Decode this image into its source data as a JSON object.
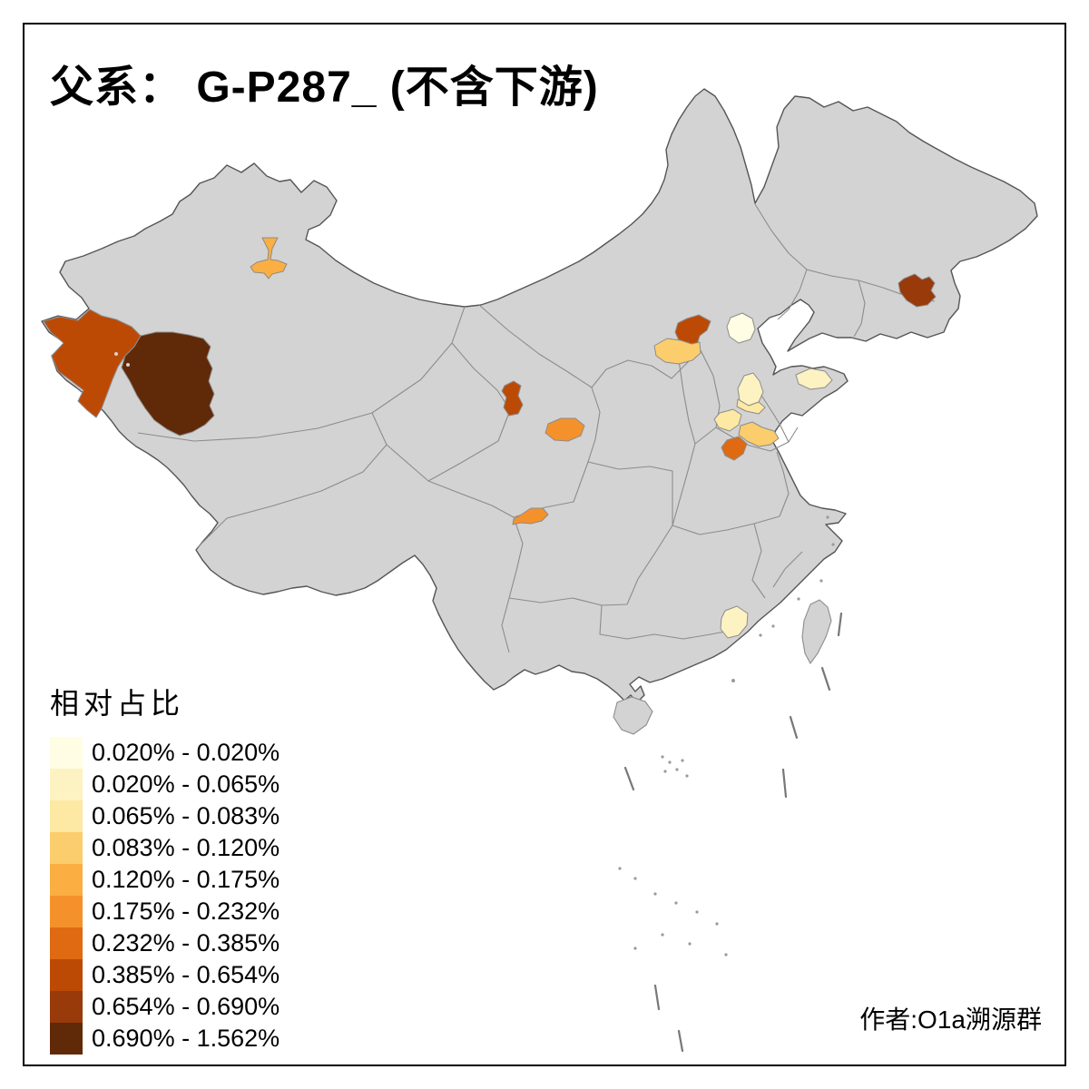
{
  "title": "父系： G-P287_ (不含下游)",
  "attribution": "作者:O1a溯源群",
  "legend": {
    "title": "相对占比",
    "classes": [
      {
        "label": "0.020% - 0.020%",
        "color": "#FFFDE3"
      },
      {
        "label": "0.020% - 0.065%",
        "color": "#FDF2C1"
      },
      {
        "label": "0.065% - 0.083%",
        "color": "#FDE8A4"
      },
      {
        "label": "0.083% - 0.120%",
        "color": "#FBCD6C"
      },
      {
        "label": "0.120% - 0.175%",
        "color": "#FBAE42"
      },
      {
        "label": "0.175% - 0.232%",
        "color": "#F5912A"
      },
      {
        "label": "0.232% - 0.385%",
        "color": "#DF6A12"
      },
      {
        "label": "0.385% - 0.654%",
        "color": "#BC4A05"
      },
      {
        "label": "0.654% - 0.690%",
        "color": "#983A09"
      },
      {
        "label": "0.690% - 1.562%",
        "color": "#602908"
      }
    ]
  },
  "map": {
    "base_fill": "#D3D3D3",
    "province_border_color": "#8C8C8C",
    "outline_color": "#555555",
    "dash_line_color": "#777777",
    "regions": [
      {
        "name": "north-xinjiang-shihezi",
        "class": 5
      },
      {
        "name": "west-xinjiang-kashgar",
        "class": 8
      },
      {
        "name": "south-xinjiang-hotan",
        "class": 10
      },
      {
        "name": "gansu-wuwei",
        "class": 8
      },
      {
        "name": "gansu-lanzhou",
        "class": 6
      },
      {
        "name": "sichuan-chengdu",
        "class": 6
      },
      {
        "name": "hebei-zhangjiakou",
        "class": 8
      },
      {
        "name": "shanxi-datong",
        "class": 4
      },
      {
        "name": "beijing",
        "class": 1
      },
      {
        "name": "central-shandong-north",
        "class": 2
      },
      {
        "name": "central-shandong-south",
        "class": 3
      },
      {
        "name": "shandong-yantai",
        "class": 2
      },
      {
        "name": "west-henan",
        "class": 3
      },
      {
        "name": "southwest-shandong-band",
        "class": 4
      },
      {
        "name": "east-henan",
        "class": 7
      },
      {
        "name": "heilongjiang-jiamusi",
        "class": 9
      },
      {
        "name": "guangdong-heyuan",
        "class": 2
      }
    ]
  }
}
